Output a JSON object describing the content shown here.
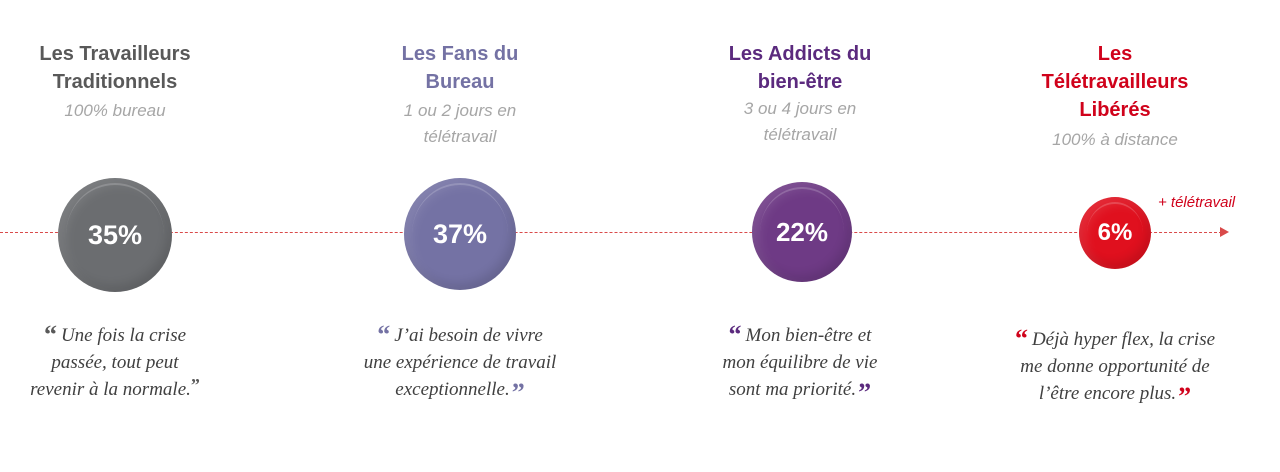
{
  "timeline": {
    "more_label": "+ télétravail",
    "line_color": "#d94a4a"
  },
  "segments": [
    {
      "title_lines": [
        "Les Travailleurs",
        "Traditionnels"
      ],
      "subtitle_lines": [
        "100% bureau"
      ],
      "percent": "35%",
      "percent_value": 35,
      "color": "#6b6d70",
      "quote_lines": [
        "Une fois la crise",
        "passée, tout peut",
        "revenir à la normale."
      ]
    },
    {
      "title_lines": [
        "Les Fans du",
        "Bureau"
      ],
      "subtitle_lines": [
        "1 ou 2 jours en",
        "télétravail"
      ],
      "percent": "37%",
      "percent_value": 37,
      "color": "#7472a4",
      "quote_lines": [
        "J’ai besoin de vivre",
        "une expérience de travail",
        "exceptionnelle."
      ]
    },
    {
      "title_lines": [
        "Les Addicts du",
        "bien-être"
      ],
      "subtitle_lines": [
        "3 ou 4 jours en",
        "télétravail"
      ],
      "percent": "22%",
      "percent_value": 22,
      "color": "#6e3a85",
      "title_color": "#5b2a7e",
      "quote_lines": [
        "Mon bien-être et",
        "mon équilibre de vie",
        "sont ma priorité."
      ]
    },
    {
      "title_lines": [
        "Les",
        "Télétravailleurs",
        "Libérés"
      ],
      "subtitle_lines": [
        "100% à distance"
      ],
      "percent": "6%",
      "percent_value": 6,
      "color": "#e0101e",
      "title_color": "#d0021b",
      "quote_lines": [
        "Déjà hyper flex, la crise",
        "me donne opportunité de",
        "l’être encore plus."
      ]
    }
  ],
  "quote_marks": {
    "open": "“",
    "close": "”"
  }
}
